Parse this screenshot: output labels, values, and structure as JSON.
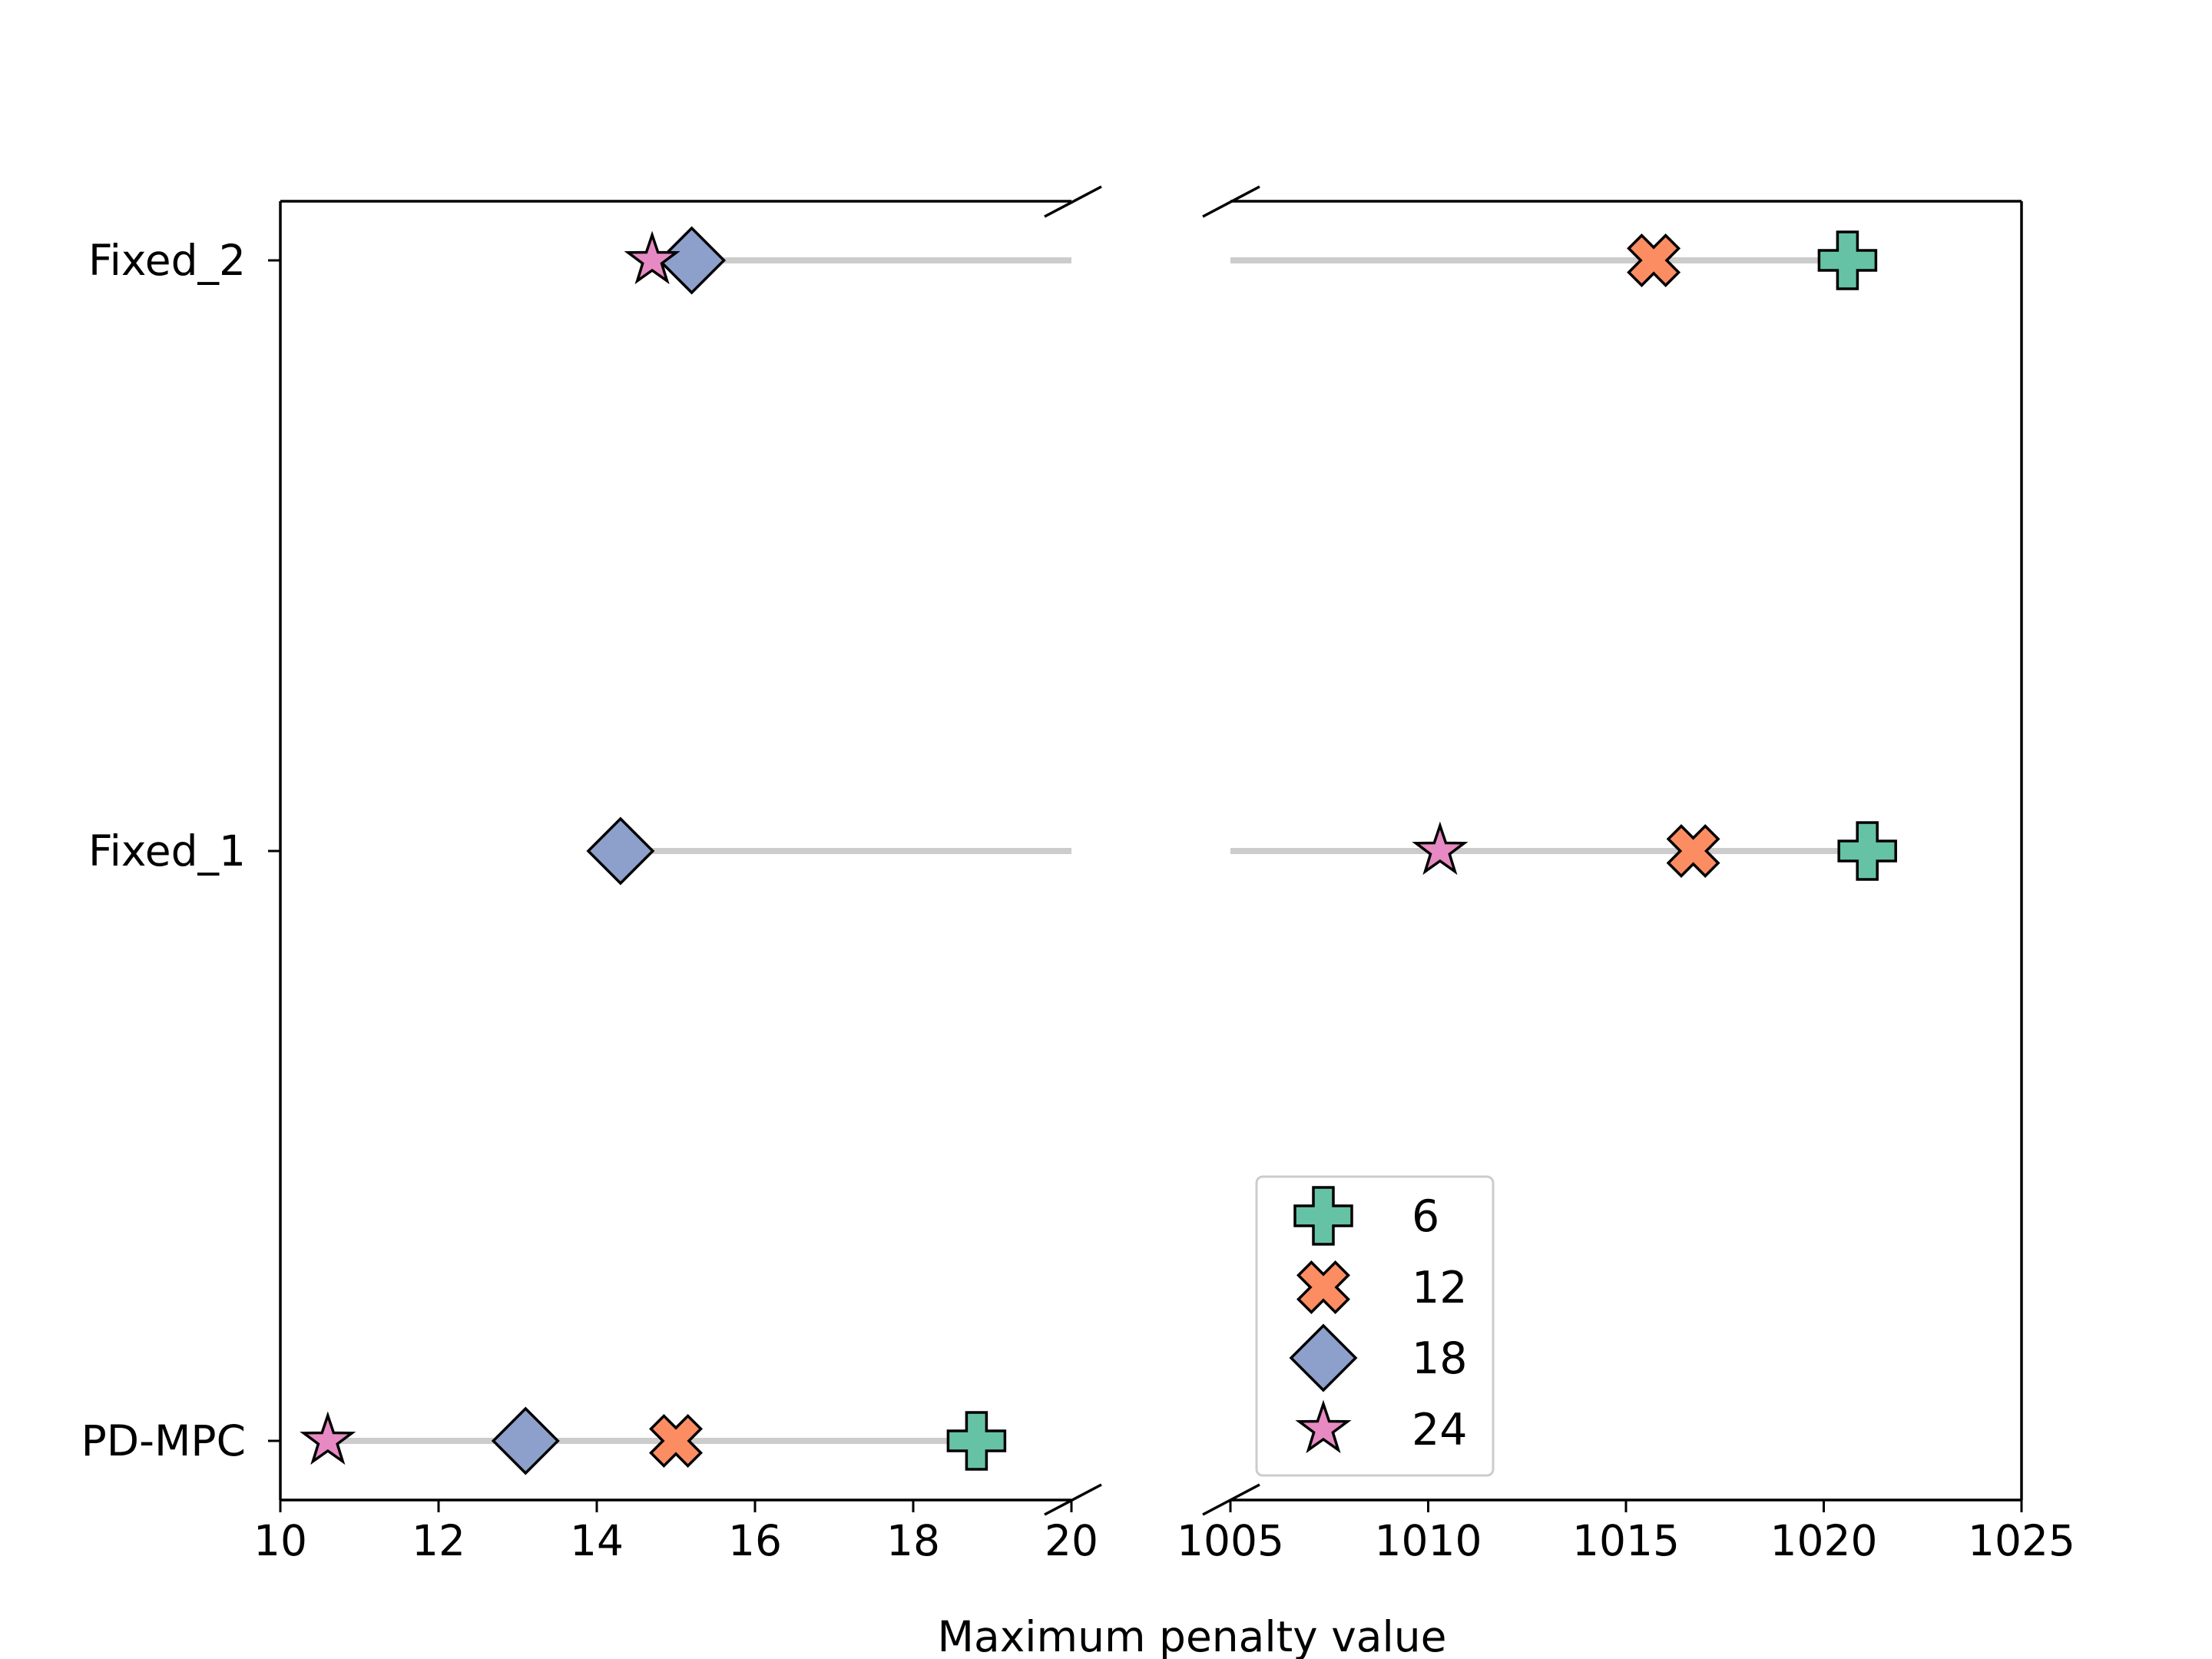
{
  "chart_data": {
    "type": "scatter",
    "title": "",
    "xlabel": "Maximum penalty value",
    "ylabel": "",
    "broken_axis": true,
    "x_segments": [
      {
        "xlim": [
          10,
          20
        ],
        "ticks": [
          10,
          12,
          14,
          16,
          18,
          20
        ]
      },
      {
        "xlim": [
          1005,
          1025
        ],
        "ticks": [
          1005,
          1010,
          1015,
          1020,
          1025
        ]
      }
    ],
    "categories": [
      "PD-MPC",
      "Fixed_1",
      "Fixed_2"
    ],
    "series": [
      {
        "name": "6",
        "marker": "plus",
        "color": "#66c2a5",
        "values": [
          18.8,
          1021.1,
          1020.6
        ]
      },
      {
        "name": "12",
        "marker": "x",
        "color": "#fc8d62",
        "values": [
          15.0,
          1016.7,
          1015.7
        ]
      },
      {
        "name": "18",
        "marker": "diamond",
        "color": "#8da0cb",
        "values": [
          13.1,
          14.3,
          15.2
        ]
      },
      {
        "name": "24",
        "marker": "star",
        "color": "#e78ac3",
        "values": [
          10.6,
          1010.3,
          14.7
        ]
      }
    ],
    "range_line_color": "#cccccc",
    "grid": false,
    "legend_placement": "lower center"
  }
}
